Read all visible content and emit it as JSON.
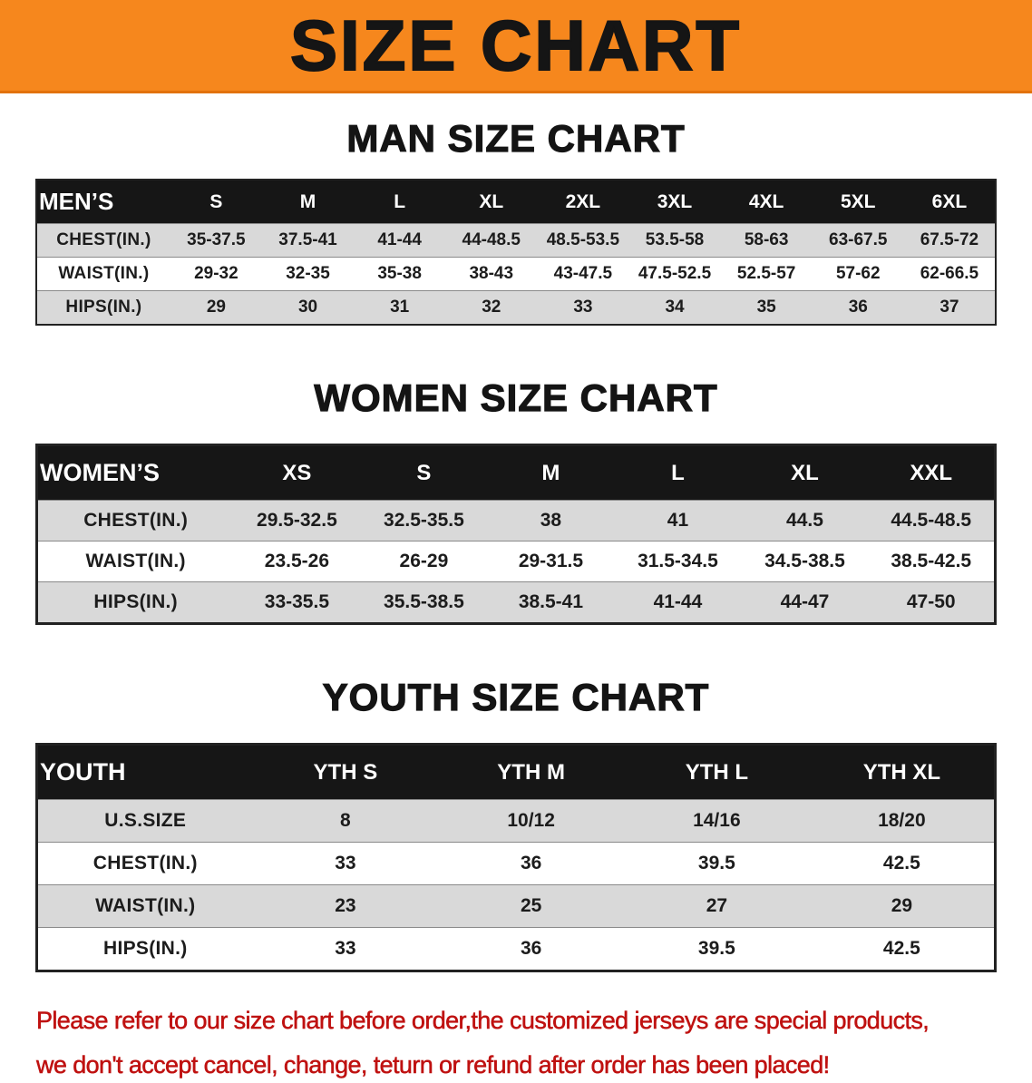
{
  "banner": {
    "title": "SIZE CHART"
  },
  "chart_data": [
    {
      "type": "table",
      "title": "MAN SIZE CHART",
      "columns": [
        "MEN’S",
        "S",
        "M",
        "L",
        "XL",
        "2XL",
        "3XL",
        "4XL",
        "5XL",
        "6XL"
      ],
      "rows": [
        [
          "CHEST(IN.)",
          "35-37.5",
          "37.5-41",
          "41-44",
          "44-48.5",
          "48.5-53.5",
          "53.5-58",
          "58-63",
          "63-67.5",
          "67.5-72"
        ],
        [
          "WAIST(IN.)",
          "29-32",
          "32-35",
          "35-38",
          "38-43",
          "43-47.5",
          "47.5-52.5",
          "52.5-57",
          "57-62",
          "62-66.5"
        ],
        [
          "HIPS(IN.)",
          "29",
          "30",
          "31",
          "32",
          "33",
          "34",
          "35",
          "36",
          "37"
        ]
      ]
    },
    {
      "type": "table",
      "title": "WOMEN SIZE CHART",
      "columns": [
        "WOMEN’S",
        "XS",
        "S",
        "M",
        "L",
        "XL",
        "XXL"
      ],
      "rows": [
        [
          "CHEST(IN.)",
          "29.5-32.5",
          "32.5-35.5",
          "38",
          "41",
          "44.5",
          "44.5-48.5"
        ],
        [
          "WAIST(IN.)",
          "23.5-26",
          "26-29",
          "29-31.5",
          "31.5-34.5",
          "34.5-38.5",
          "38.5-42.5"
        ],
        [
          "HIPS(IN.)",
          "33-35.5",
          "35.5-38.5",
          "38.5-41",
          "41-44",
          "44-47",
          "47-50"
        ]
      ]
    },
    {
      "type": "table",
      "title": "YOUTH SIZE CHART",
      "columns": [
        "YOUTH",
        "YTH S",
        "YTH M",
        "YTH L",
        "YTH XL"
      ],
      "rows": [
        [
          "U.S.SIZE",
          "8",
          "10/12",
          "14/16",
          "18/20"
        ],
        [
          "CHEST(IN.)",
          "33",
          "36",
          "39.5",
          "42.5"
        ],
        [
          "WAIST(IN.)",
          "23",
          "25",
          "27",
          "29"
        ],
        [
          "HIPS(IN.)",
          "33",
          "36",
          "39.5",
          "42.5"
        ]
      ]
    }
  ],
  "footer": {
    "line1": "Please refer to our size chart before order,the customized jerseys are special products,",
    "line2": "we don't accept cancel, change, teturn or refund after order has been placed!"
  },
  "colors": {
    "banner_bg": "#f6871d",
    "table_header_bg": "#161616",
    "row_alt_bg": "#d9d9d9",
    "note_text": "#bf1110"
  }
}
